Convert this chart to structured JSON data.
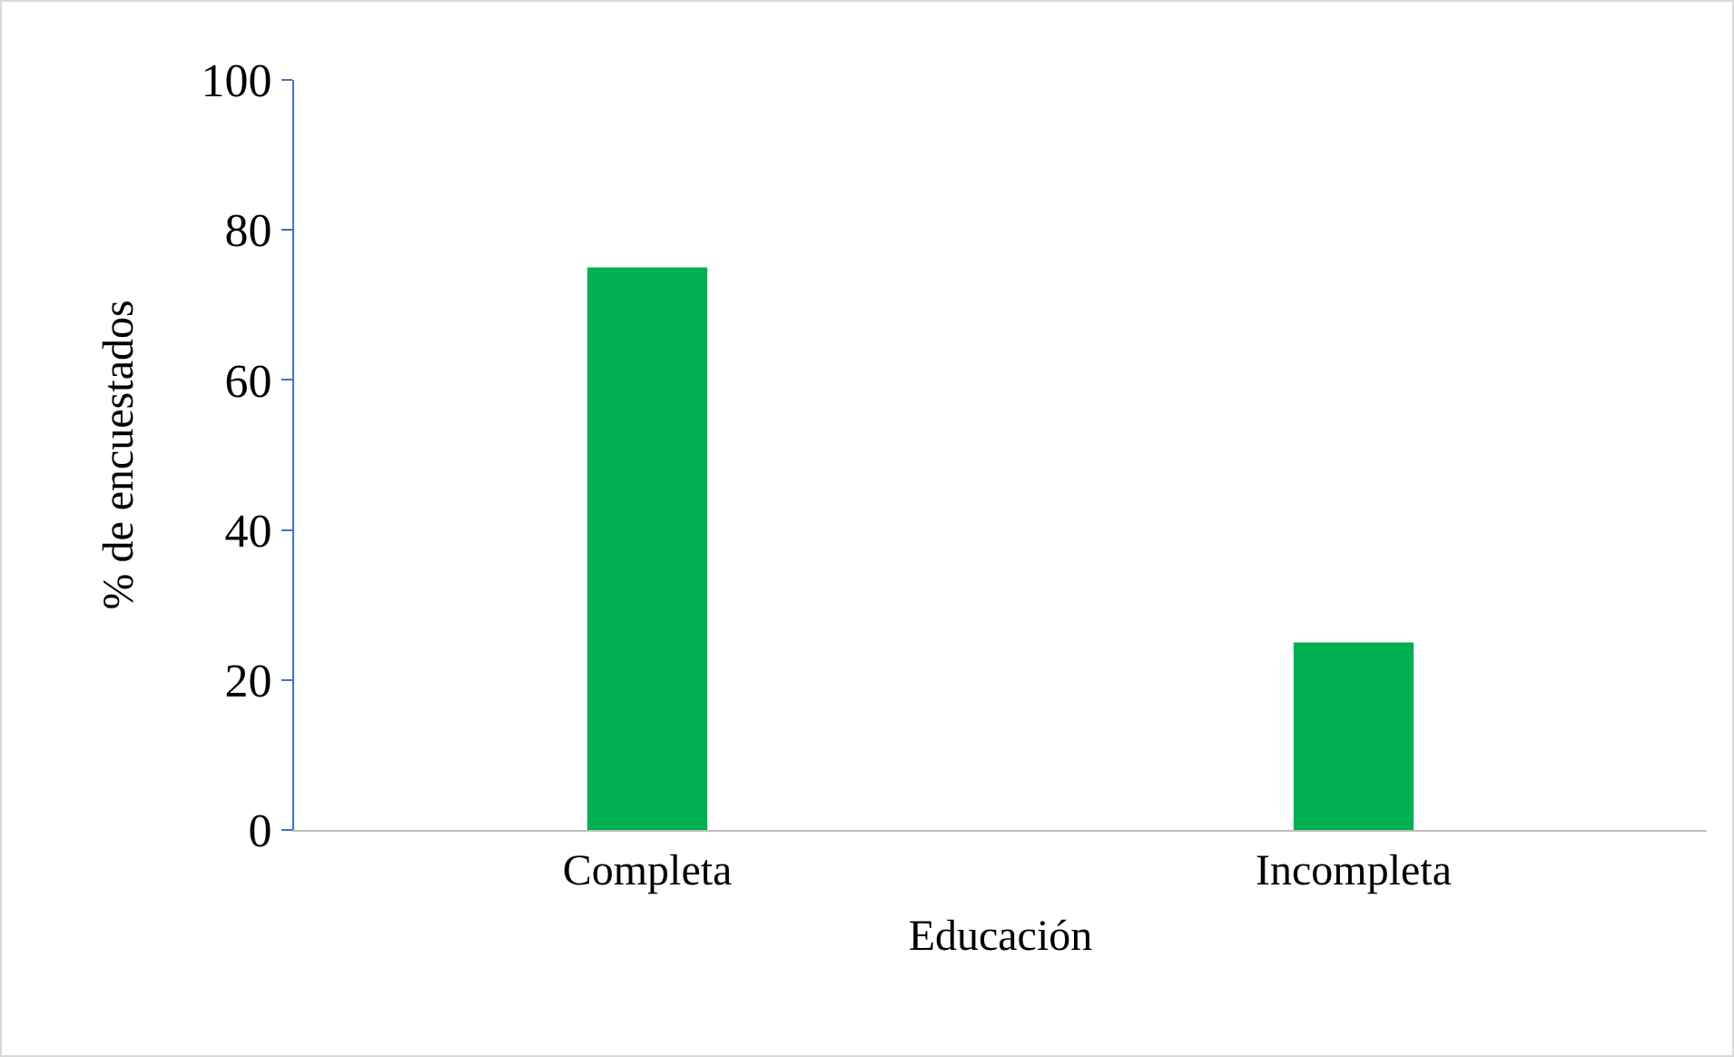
{
  "chart_data": {
    "type": "bar",
    "xlabel": "Educación",
    "ylabel": "% de encuestados",
    "categories": [
      "Completa",
      "Incompleta"
    ],
    "values": [
      75,
      25
    ],
    "color": "#00b050",
    "ylim": [
      0,
      100
    ],
    "yticks": [
      0,
      20,
      40,
      60,
      80,
      100
    ],
    "grid": false,
    "legend": false
  }
}
